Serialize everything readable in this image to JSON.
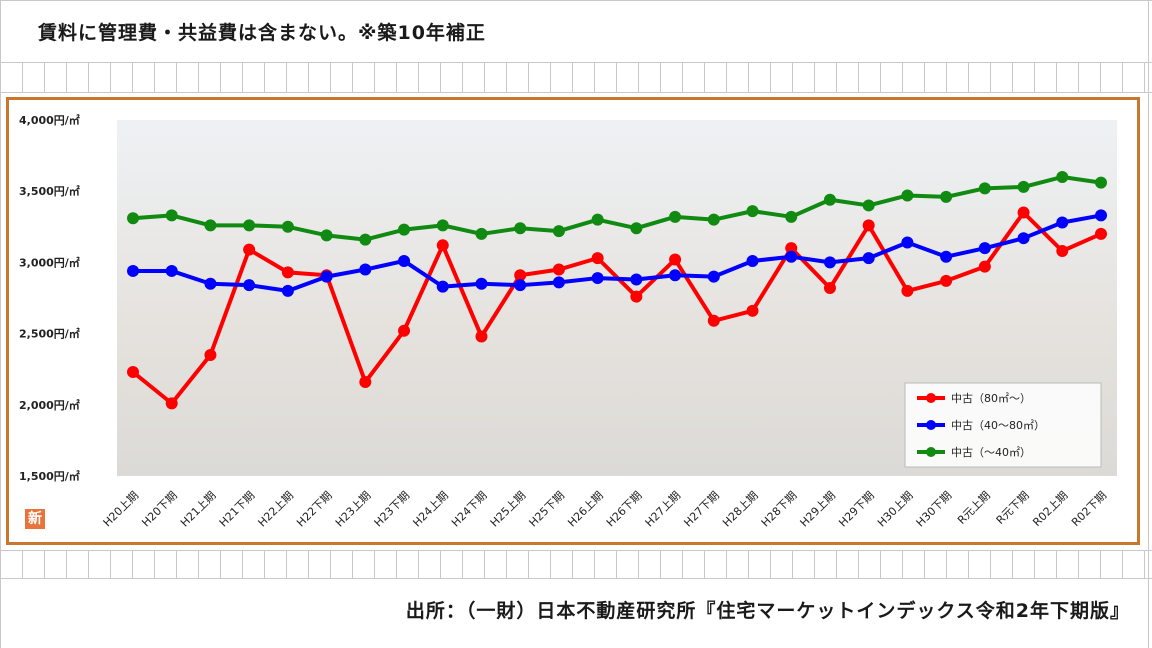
{
  "page": {
    "top_note": "賃料に管理費・共益費は含まない。※築10年補正",
    "source_note": "出所：（一財）日本不動産研究所『住宅マーケットインデックス令和2年下期版』",
    "badge_text": "新"
  },
  "chart_data": {
    "type": "line",
    "title": "",
    "xlabel": "",
    "ylabel": "",
    "ylim": [
      1500,
      4000
    ],
    "y_ticks": [
      1500,
      2000,
      2500,
      3000,
      3500,
      4000
    ],
    "y_tick_labels": [
      "1,500円/㎡",
      "2,000円/㎡",
      "2,500円/㎡",
      "3,000円/㎡",
      "3,500円/㎡",
      "4,000円/㎡"
    ],
    "grid": false,
    "legend_position": "bottom-right",
    "categories": [
      "H20上期",
      "H20下期",
      "H21上期",
      "H21下期",
      "H22上期",
      "H22下期",
      "H23上期",
      "H23下期",
      "H24上期",
      "H24下期",
      "H25上期",
      "H25下期",
      "H26上期",
      "H26下期",
      "H27上期",
      "H27下期",
      "H28上期",
      "H28下期",
      "H29上期",
      "H29下期",
      "H30上期",
      "H30下期",
      "R元上期",
      "R元下期",
      "R02上期",
      "R02下期"
    ],
    "series": [
      {
        "name": "中古（80㎡～）",
        "color": "#ff0000",
        "values": [
          2230,
          2010,
          2350,
          3090,
          2930,
          2910,
          2160,
          2520,
          3120,
          2480,
          2910,
          2950,
          3030,
          2760,
          3020,
          2590,
          2660,
          3100,
          2820,
          3260,
          2800,
          2870,
          2970,
          3350,
          3080,
          3200
        ]
      },
      {
        "name": "中古（40～80㎡）",
        "color": "#0000ff",
        "values": [
          2940,
          2940,
          2850,
          2840,
          2800,
          2900,
          2950,
          3010,
          2830,
          2850,
          2840,
          2860,
          2890,
          2880,
          2910,
          2900,
          3010,
          3040,
          3000,
          3030,
          3140,
          3040,
          3100,
          3170,
          3280,
          3330
        ]
      },
      {
        "name": "中古（～40㎡）",
        "color": "#118a11",
        "values": [
          3310,
          3330,
          3260,
          3260,
          3250,
          3190,
          3160,
          3230,
          3260,
          3200,
          3240,
          3220,
          3300,
          3240,
          3320,
          3300,
          3360,
          3320,
          3440,
          3400,
          3470,
          3460,
          3520,
          3530,
          3600,
          3560
        ]
      }
    ]
  }
}
